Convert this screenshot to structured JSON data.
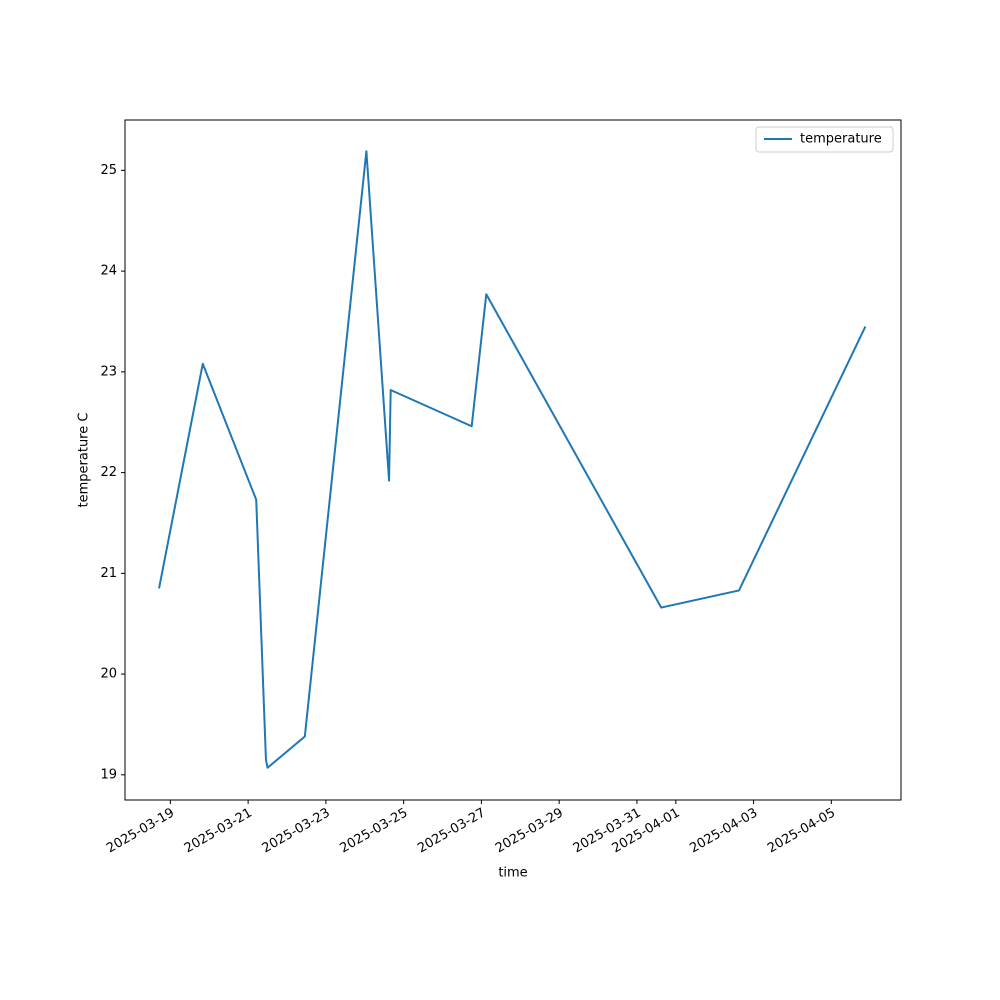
{
  "chart_data": {
    "type": "line",
    "x_label": "time",
    "y_label": "temperature C",
    "x": [
      "2025-03-18 17:00",
      "2025-03-19 20:00",
      "2025-03-21 05:00",
      "2025-03-21 11:00",
      "2025-03-21 12:00",
      "2025-03-22 11:00",
      "2025-03-24 01:00",
      "2025-03-24 15:00",
      "2025-03-24 16:00",
      "2025-03-26 18:00",
      "2025-03-27 03:00",
      "2025-03-31 15:00",
      "2025-04-02 15:00",
      "2025-04-05 21:00"
    ],
    "series": [
      {
        "name": "temperature",
        "color": "#1f77b4",
        "values": [
          20.85,
          23.08,
          21.73,
          19.15,
          19.07,
          19.38,
          25.19,
          21.92,
          22.82,
          22.46,
          23.77,
          20.66,
          20.83,
          23.45
        ]
      }
    ],
    "xlim": [
      "2025-03-17 20:00",
      "2025-04-06 19:00"
    ],
    "xticks": [
      "2025-03-19",
      "2025-03-21",
      "2025-03-23",
      "2025-03-25",
      "2025-03-27",
      "2025-03-29",
      "2025-03-31",
      "2025-04-01",
      "2025-04-03",
      "2025-04-05"
    ],
    "ylim": [
      18.75,
      25.5
    ],
    "yticks": [
      19,
      20,
      21,
      22,
      23,
      24,
      25
    ],
    "legend": "upper right",
    "grid": false
  }
}
